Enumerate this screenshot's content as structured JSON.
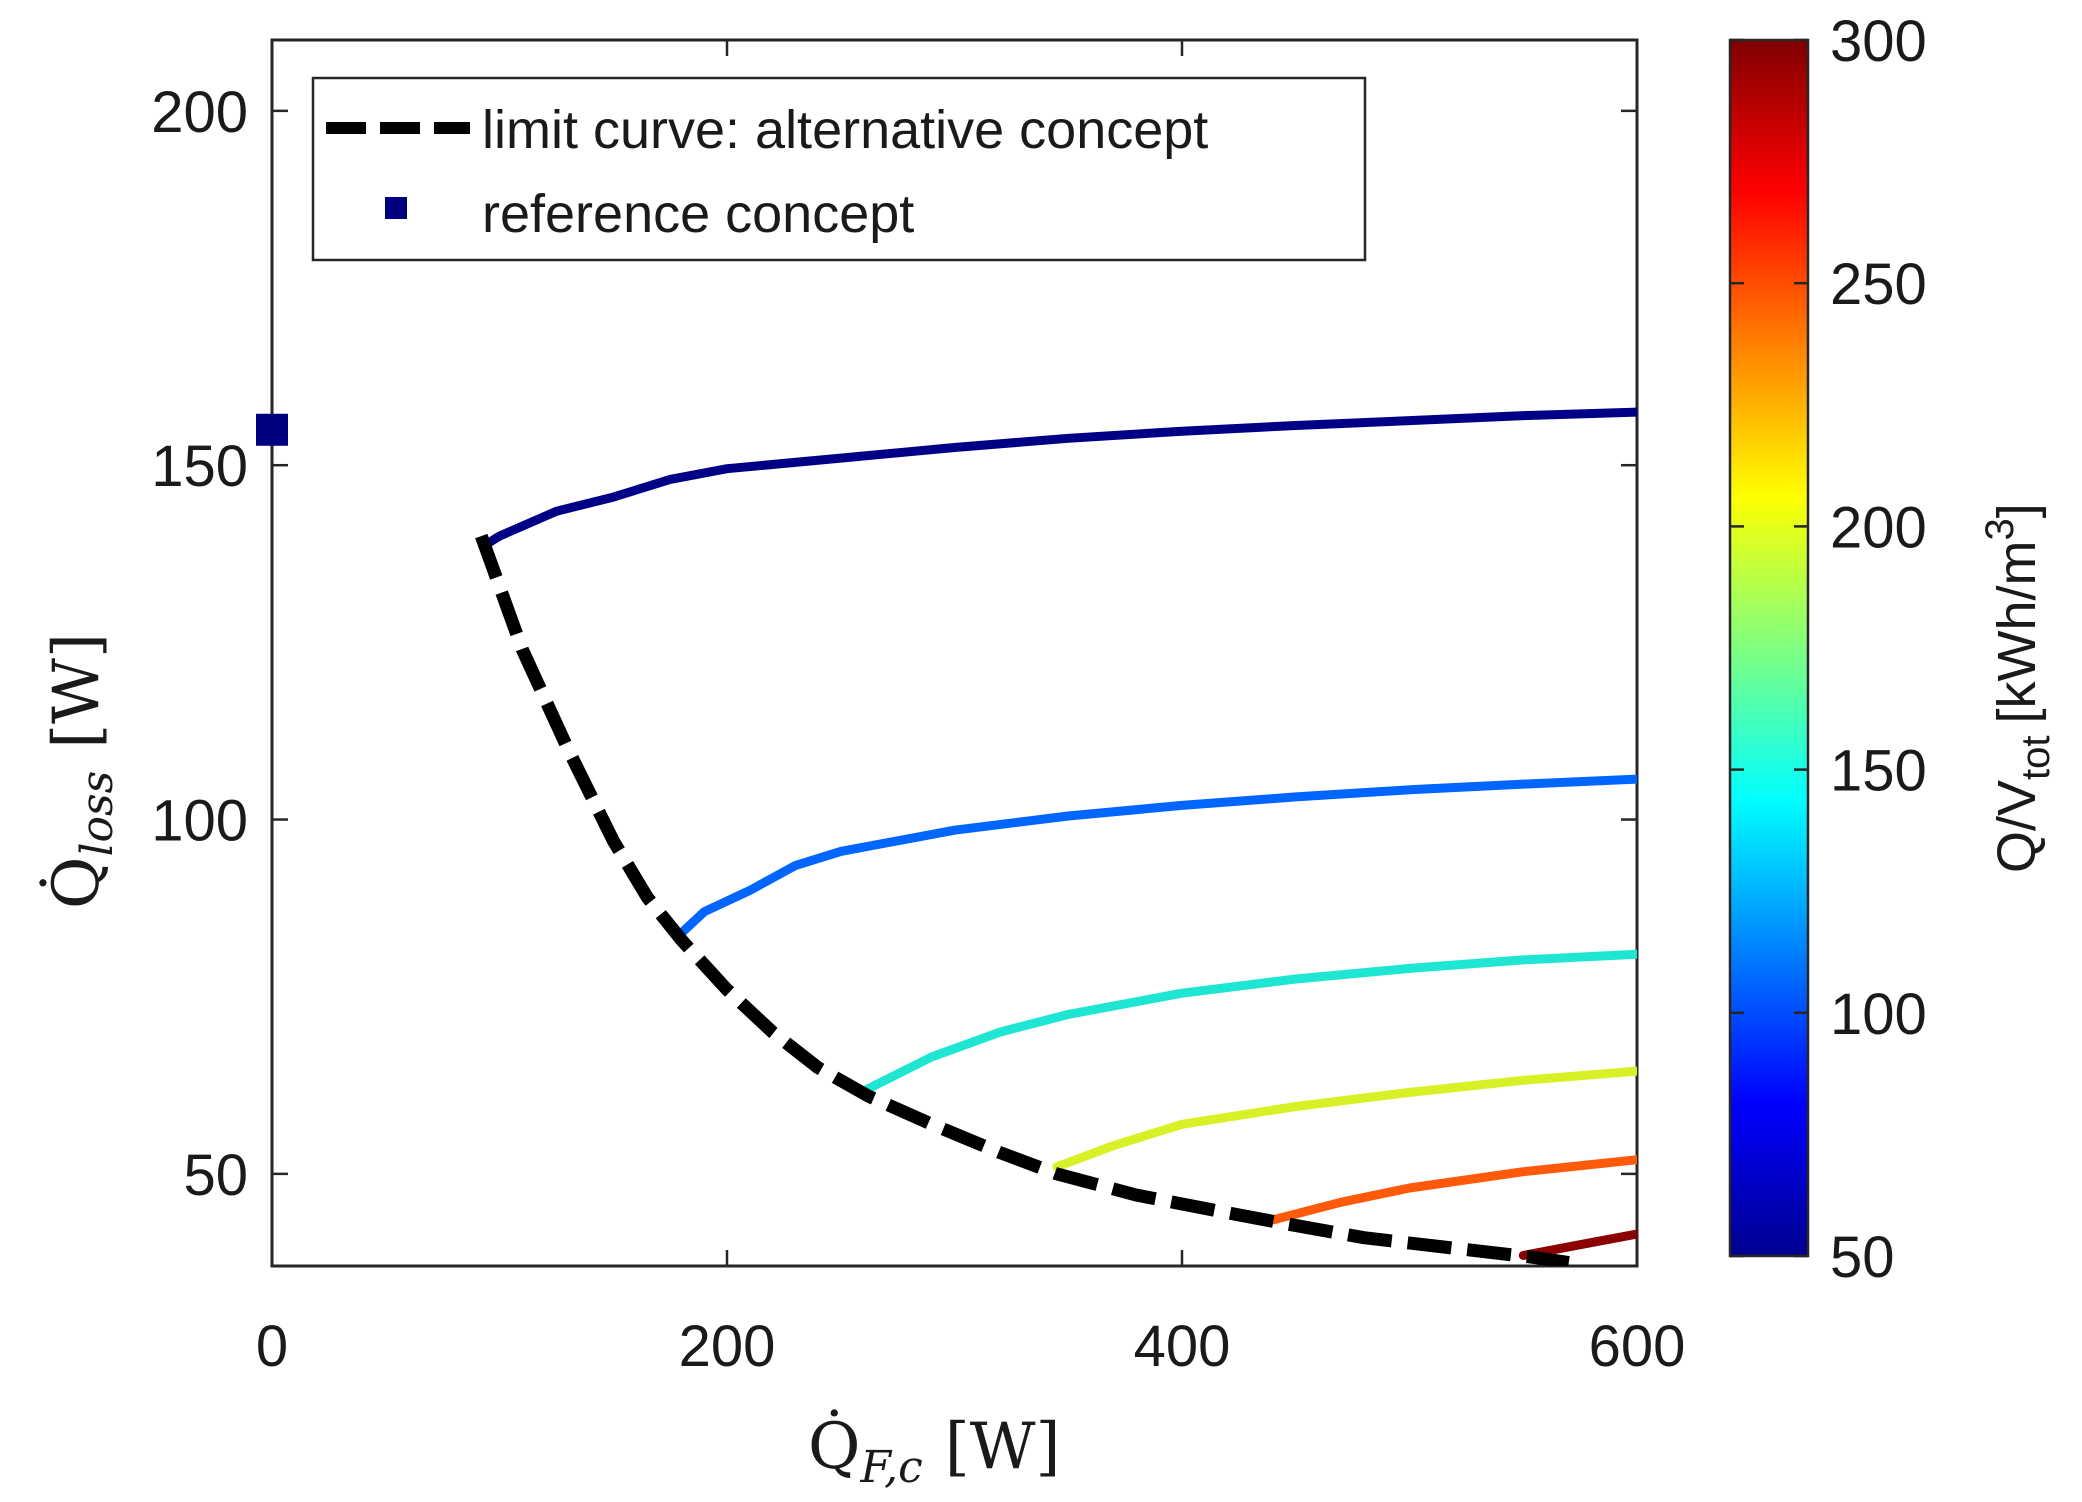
{
  "chart_data": {
    "type": "line",
    "title": "",
    "xlabel": {
      "base": "Q̇",
      "sub": "F,c",
      "unit": "[W]"
    },
    "ylabel": {
      "base": "Q̇",
      "sub": "loss",
      "unit": "[W]"
    },
    "xlim": [
      0,
      600
    ],
    "ylim": [
      37,
      210
    ],
    "xticks": [
      0,
      200,
      400,
      600
    ],
    "yticks": [
      50,
      100,
      150,
      200
    ],
    "grid": false,
    "legend": {
      "position": "top-left",
      "entries": [
        {
          "label": "limit curve: alternative concept",
          "style": "dashed-line",
          "color": "#000000"
        },
        {
          "label": "reference concept",
          "style": "square-marker",
          "color": "#000080"
        }
      ]
    },
    "colorbar": {
      "label_base": "Q/V",
      "label_sub": "tot",
      "label_unit": "[kWh/m",
      "label_sup": "3",
      "label_close": "]",
      "range": [
        50,
        300
      ],
      "ticks": [
        50,
        100,
        150,
        200,
        250,
        300
      ],
      "colormap": "jet"
    },
    "series": [
      {
        "name": "limit curve: alternative concept",
        "style": "dashed",
        "color": "#000000",
        "x": [
          92,
          110,
          130,
          150,
          165,
          180,
          200,
          220,
          240,
          262,
          290,
          320,
          345,
          380,
          420,
          445,
          480,
          520,
          555,
          570
        ],
        "y": [
          140,
          124,
          110,
          97,
          89,
          83,
          76,
          70,
          65,
          61,
          57,
          53,
          50,
          47,
          44.5,
          43,
          41,
          39.5,
          38.2,
          37.5
        ]
      },
      {
        "name": "reference concept",
        "style": "marker",
        "color": "#000080",
        "x": [
          0
        ],
        "y": [
          155
        ]
      },
      {
        "name": "Q/V_tot ≈ 55",
        "value": 55,
        "color": "#000087",
        "x": [
          95,
          100,
          125,
          150,
          175,
          200,
          250,
          300,
          350,
          400,
          450,
          500,
          550,
          600
        ],
        "y": [
          139,
          140,
          143.5,
          145.5,
          148,
          149.5,
          151,
          152.5,
          153.8,
          154.8,
          155.6,
          156.3,
          157,
          157.5
        ]
      },
      {
        "name": "Q/V_tot ≈ 100",
        "value": 100,
        "color": "#0066ff",
        "x": [
          180,
          190,
          210,
          230,
          250,
          300,
          350,
          400,
          450,
          500,
          550,
          600
        ],
        "y": [
          84,
          87,
          90,
          93.5,
          95.5,
          98.5,
          100.5,
          102,
          103.2,
          104.2,
          105,
          105.7
        ]
      },
      {
        "name": "Q/V_tot ≈ 150",
        "value": 150,
        "color": "#1ee6d2",
        "x": [
          262,
          290,
          320,
          350,
          400,
          450,
          500,
          550,
          600
        ],
        "y": [
          62,
          66.5,
          70,
          72.5,
          75.5,
          77.5,
          79,
          80.2,
          81
        ]
      },
      {
        "name": "Q/V_tot ≈ 200",
        "value": 200,
        "color": "#d8f026",
        "x": [
          345,
          370,
          400,
          450,
          500,
          550,
          600
        ],
        "y": [
          51,
          54,
          57,
          59.5,
          61.5,
          63.2,
          64.5
        ]
      },
      {
        "name": "Q/V_tot ≈ 250",
        "value": 250,
        "color": "#ff5a0a",
        "x": [
          440,
          470,
          500,
          550,
          600
        ],
        "y": [
          43.5,
          46,
          48,
          50.3,
          52
        ]
      },
      {
        "name": "Q/V_tot ≈ 300",
        "value": 300,
        "color": "#8b0000",
        "x": [
          550,
          575,
          600
        ],
        "y": [
          38.5,
          40,
          41.5
        ]
      }
    ]
  }
}
